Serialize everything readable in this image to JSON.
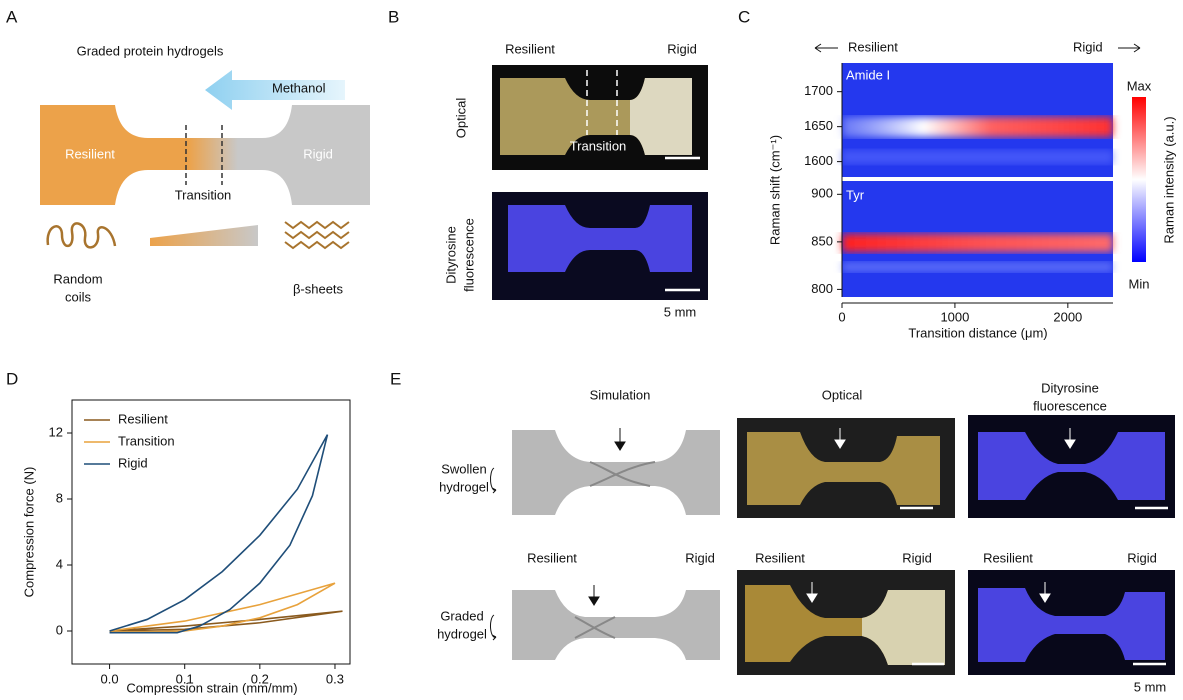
{
  "panels": {
    "A": {
      "label": "A",
      "title": "Graded protein hydrogels",
      "solvent": "Methanol",
      "left": "Resilient",
      "right": "Rigid",
      "middle": "Transition",
      "left_structure": [
        "Random",
        "coils"
      ],
      "right_structure": "β-sheets"
    },
    "B": {
      "label": "B",
      "left": "Resilient",
      "right": "Rigid",
      "row1": "Optical",
      "middle": "Transition",
      "row2": [
        "Dityrosine",
        "fluorescence"
      ],
      "scale": "5 mm"
    },
    "C": {
      "label": "C",
      "left": "Resilient",
      "right": "Rigid",
      "top_band": "Amide I",
      "bottom_band": "Tyr",
      "cbar_max": "Max",
      "cbar_min": "Min",
      "ylabel": "Raman shift (cm⁻¹)",
      "cbar_label": "Raman intensity (a.u.)",
      "xlabel": "Transition distance (μm)",
      "xlim": [
        0,
        2400
      ],
      "xticks": [
        0,
        1000,
        2000
      ],
      "top_ylim": [
        1578,
        1741
      ],
      "top_yticks": [
        1600,
        1650,
        1700
      ],
      "bottom_ylim": [
        792,
        914
      ],
      "bottom_yticks": [
        800,
        850,
        900
      ]
    },
    "D": {
      "label": "D"
    },
    "E": {
      "label": "E",
      "col1": "Simulation",
      "col2": "Optical",
      "col3": [
        "Dityrosine",
        "fluorescence"
      ],
      "row1": [
        "Swollen",
        "hydrogel"
      ],
      "row2": [
        "Graded",
        "hydrogel"
      ],
      "ends": [
        [
          "Resilient",
          "Rigid"
        ],
        [
          "Resilient",
          "Rigid"
        ],
        [
          "Resilient",
          "Rigid"
        ]
      ],
      "scale": "5 mm"
    }
  },
  "chart_data": {
    "type": "line",
    "xlabel": "Compression strain (mm/mm)",
    "ylabel": "Compression force (N)",
    "xlim": [
      -0.05,
      0.32
    ],
    "xticks": [
      {
        "value": 0,
        "label": "0.0"
      },
      {
        "value": 0.1,
        "label": "0.1"
      },
      {
        "value": 0.2,
        "label": "0.2"
      },
      {
        "value": 0.3,
        "label": "0.3"
      }
    ],
    "ylim": [
      -2,
      14
    ],
    "yticks": [
      0,
      4,
      8,
      12
    ],
    "legend": "upper-left",
    "series": [
      {
        "name": "Resilient",
        "color": "#8a5a1e",
        "x": [
          0,
          0.1,
          0.2,
          0.31,
          0.2,
          0.1,
          0
        ],
        "values": [
          0,
          0.3,
          0.7,
          1.2,
          0.5,
          0.1,
          0
        ]
      },
      {
        "name": "Transition",
        "color": "#e8a23c",
        "x": [
          0,
          0.1,
          0.2,
          0.3,
          0.25,
          0.2,
          0.15,
          0.1,
          0.05,
          0
        ],
        "values": [
          0,
          0.6,
          1.6,
          2.9,
          1.6,
          0.8,
          0.3,
          0,
          -0.05,
          -0.05
        ]
      },
      {
        "name": "Rigid",
        "color": "#1f4e79",
        "x": [
          0,
          0.05,
          0.1,
          0.15,
          0.2,
          0.25,
          0.29,
          0.27,
          0.24,
          0.2,
          0.16,
          0.12,
          0.09,
          0.05,
          0
        ],
        "values": [
          0,
          0.7,
          1.9,
          3.6,
          5.8,
          8.6,
          11.9,
          8.2,
          5.2,
          2.9,
          1.3,
          0.3,
          -0.1,
          -0.1,
          -0.1
        ]
      }
    ]
  }
}
